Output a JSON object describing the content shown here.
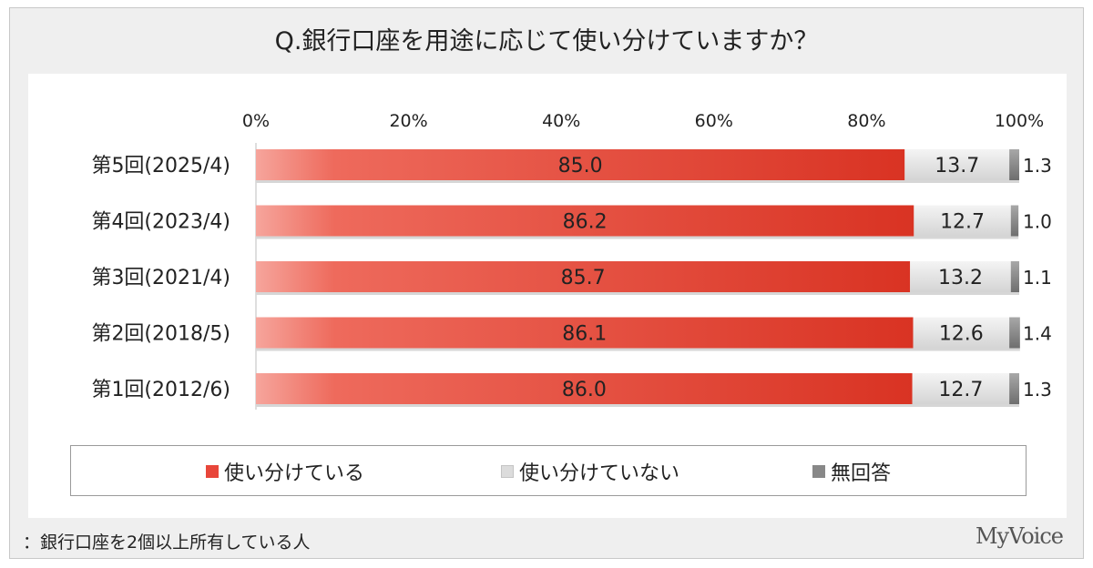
{
  "title": "Q.銀行口座を用途に応じて使い分けていますか？",
  "footnote": "：銀行口座を2個以上所有している人",
  "brand": "MyVoice",
  "colors": {
    "series1": "#e8463a",
    "series2": "#e0e0e0",
    "series3": "#8a8a8a"
  },
  "chart_data": {
    "type": "bar",
    "orientation": "horizontal",
    "stacked": true,
    "xlim": [
      0,
      100
    ],
    "x_ticks": [
      "0%",
      "20%",
      "40%",
      "60%",
      "80%",
      "100%"
    ],
    "categories": [
      "第5回(2025/4)",
      "第4回(2023/4)",
      "第3回(2021/4)",
      "第2回(2018/5)",
      "第1回(2012/6)"
    ],
    "series": [
      {
        "name": "使い分けている",
        "values": [
          85.0,
          86.2,
          85.7,
          86.1,
          86.0
        ],
        "labels": [
          "85.0",
          "86.2",
          "85.7",
          "86.1",
          "86.0"
        ]
      },
      {
        "name": "使い分けていない",
        "values": [
          13.7,
          12.7,
          13.2,
          12.6,
          12.7
        ],
        "labels": [
          "13.7",
          "12.7",
          "13.2",
          "12.6",
          "12.7"
        ]
      },
      {
        "name": "無回答",
        "values": [
          1.3,
          1.0,
          1.1,
          1.4,
          1.3
        ],
        "labels": [
          "1.3",
          "1.0",
          "1.1",
          "1.4",
          "1.3"
        ]
      }
    ],
    "legend_position": "bottom"
  }
}
